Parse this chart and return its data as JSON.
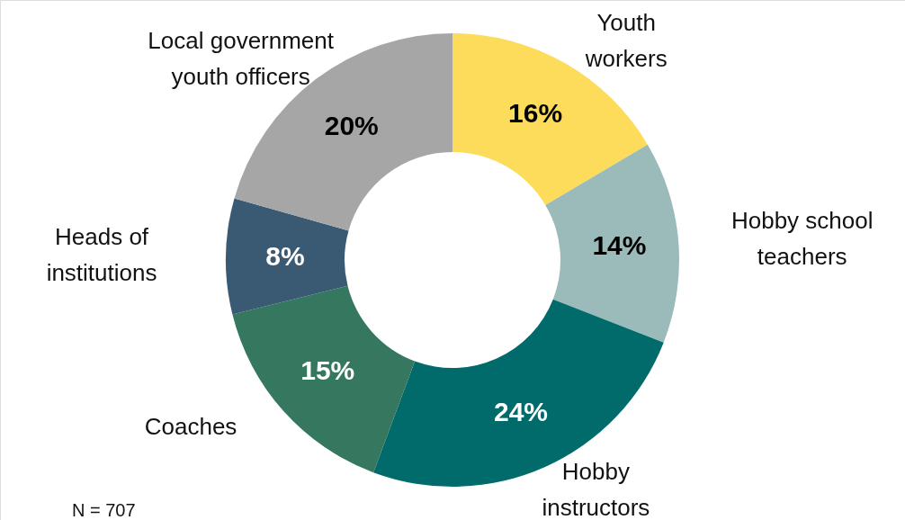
{
  "chart_data": {
    "type": "donut",
    "categories": [
      "Youth workers",
      "Hobby school teachers",
      "Hobby instructors",
      "Coaches",
      "Heads of institutions",
      "Local government youth officers"
    ],
    "values": [
      16,
      14,
      24,
      15,
      8,
      20
    ],
    "value_labels": [
      "16%",
      "14%",
      "24%",
      "15%",
      "8%",
      "20%"
    ],
    "colors": [
      "#fddc5c",
      "#9bbaba",
      "#016b6b",
      "#35775f",
      "#3a5a73",
      "#a6a6a6"
    ],
    "annotations": [
      "N = 707"
    ]
  }
}
